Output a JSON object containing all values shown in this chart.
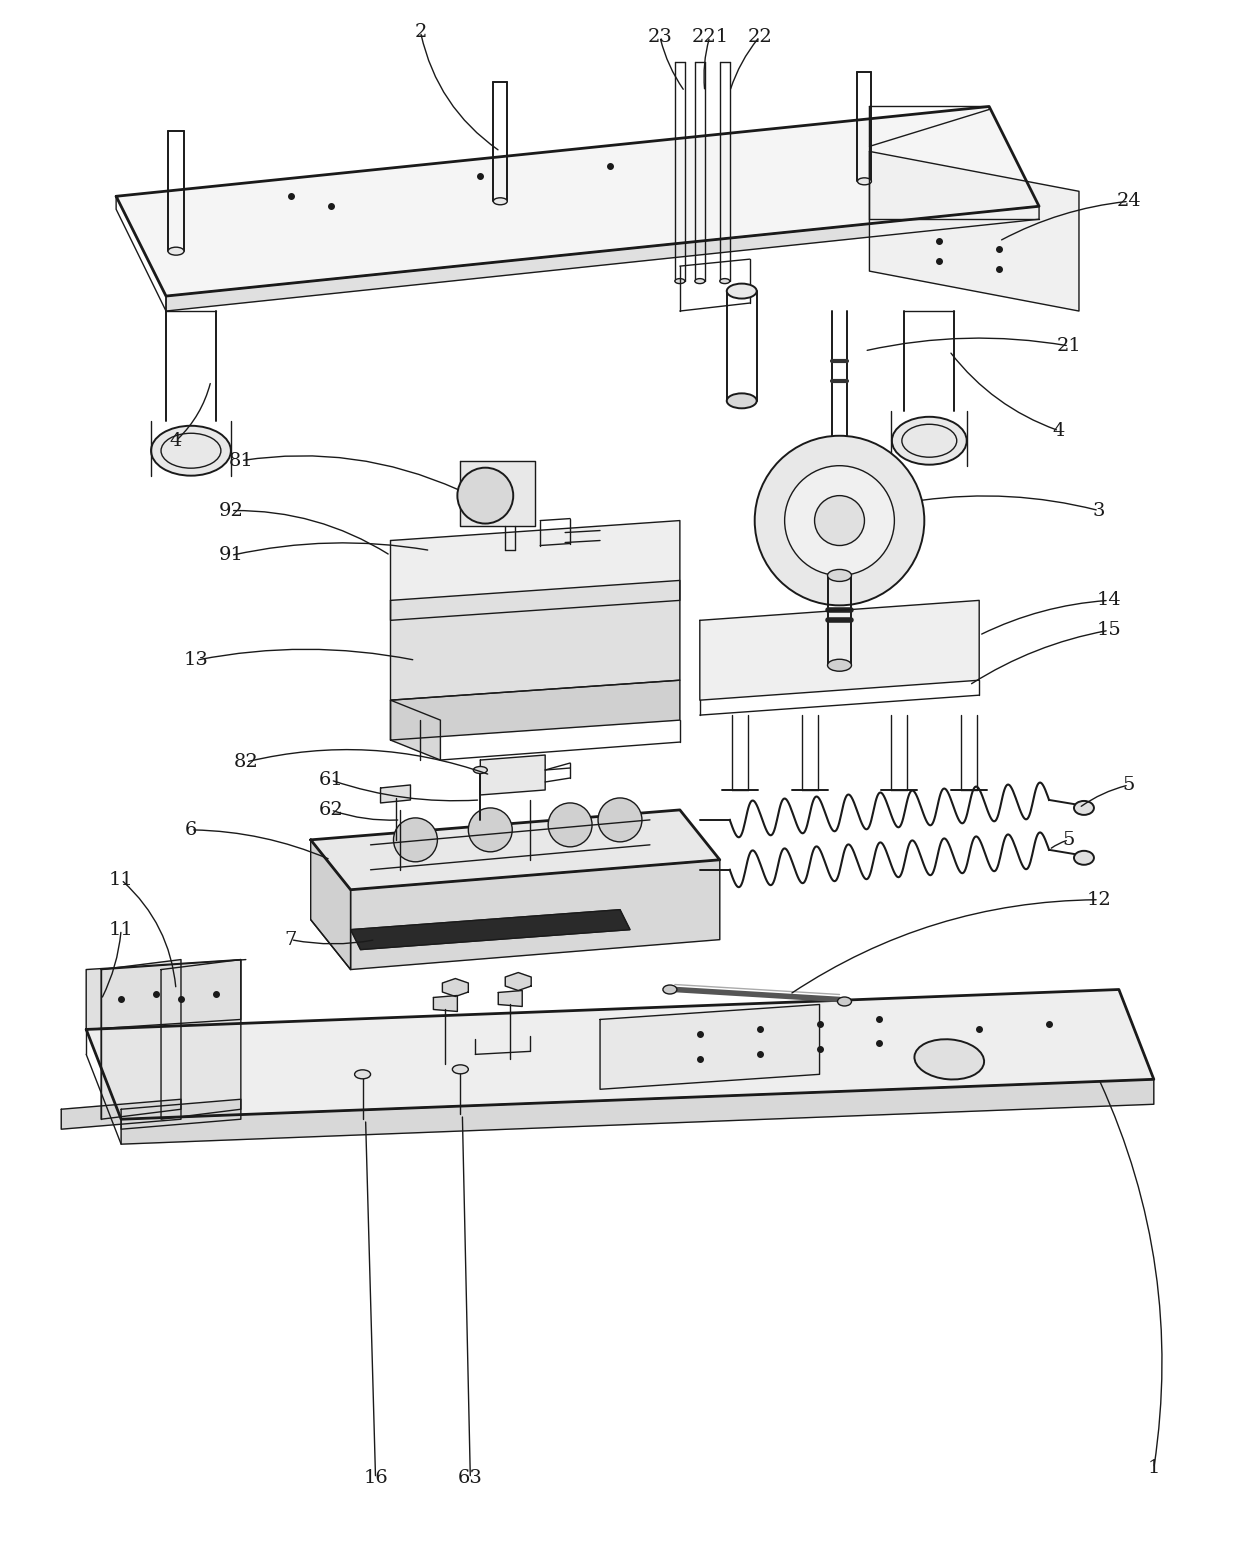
{
  "background_color": "#ffffff",
  "line_color": "#1a1a1a",
  "text_color": "#1a1a1a",
  "fig_width": 12.4,
  "fig_height": 15.43,
  "dpi": 100,
  "font_size": 14,
  "lw_main": 2.0,
  "lw_med": 1.4,
  "lw_thin": 1.0,
  "lw_thick": 3.0
}
